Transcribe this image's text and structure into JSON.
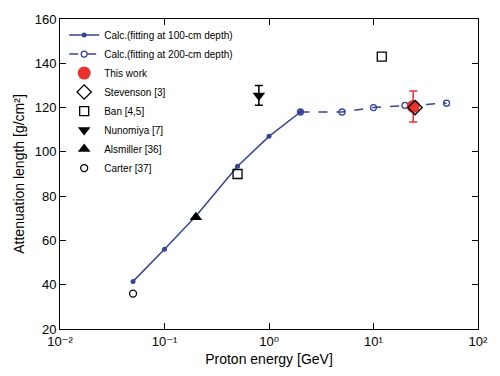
{
  "chart_data": {
    "type": "scatter",
    "x_label": "Proton energy [GeV]",
    "y_label": "Attenuation length [g/cm²]",
    "log": "x",
    "grid": false,
    "legend": "upper left",
    "xlim": [
      0.01,
      100
    ],
    "xticks": [
      {
        "value": 0.01,
        "label": "10⁻²"
      },
      {
        "value": 0.1,
        "label": "10⁻¹"
      },
      {
        "value": 1,
        "label": "10⁰"
      },
      {
        "value": 10,
        "label": "10¹"
      },
      {
        "value": 100,
        "label": "10²"
      }
    ],
    "ylim": [
      20,
      160
    ],
    "yticks": [
      20,
      40,
      60,
      80,
      100,
      120,
      140,
      160
    ],
    "series": [
      {
        "name": "Calc.(fitting at 100-cm depth)",
        "type": "line",
        "color": "#34449a",
        "marker": "circle",
        "line_style": "solid",
        "x": [
          0.05,
          0.1,
          0.2,
          0.5,
          1,
          2
        ],
        "values": [
          41.5,
          56,
          71,
          93.5,
          107,
          118
        ]
      },
      {
        "name": "Calc.(fitting at 200-cm depth)",
        "type": "line",
        "color": "#34449a",
        "marker": "circle-open",
        "line_style": "dash",
        "x": [
          2,
          5,
          10,
          20,
          50
        ],
        "values": [
          118,
          118,
          120,
          121,
          122
        ]
      },
      {
        "name": "This work",
        "type": "scatter",
        "color": "#e8322b",
        "marker": "circle",
        "x": [
          24
        ],
        "values": [
          120.5
        ],
        "errors": [
          7
        ]
      },
      {
        "name": "Stevenson [3]",
        "type": "scatter",
        "color": "#000000",
        "marker": "diamond-open",
        "x": [
          25
        ],
        "values": [
          120
        ]
      },
      {
        "name": "Ban [4,5]",
        "type": "scatter",
        "color": "#000000",
        "marker": "square-open",
        "x": [
          0.5,
          12
        ],
        "values": [
          90,
          143
        ]
      },
      {
        "name": "Nunomiya [7]",
        "type": "scatter",
        "color": "#000000",
        "marker": "triangle-down",
        "x": [
          0.8
        ],
        "values": [
          125.5
        ],
        "errors": [
          4.5
        ]
      },
      {
        "name": "Alsmiller [36]",
        "type": "scatter",
        "color": "#000000",
        "marker": "triangle-up",
        "x": [
          0.2
        ],
        "values": [
          70.5
        ]
      },
      {
        "name": "Carter [37]",
        "type": "scatter",
        "color": "#000000",
        "marker": "circle-open",
        "x": [
          0.05
        ],
        "values": [
          36
        ]
      }
    ]
  }
}
